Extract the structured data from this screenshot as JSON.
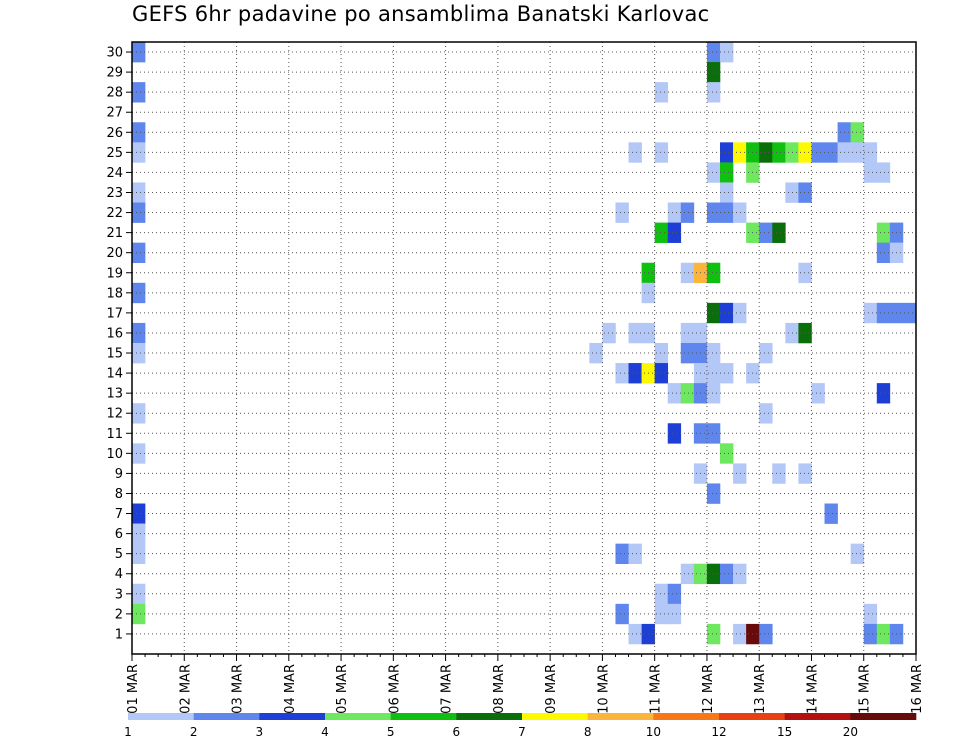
{
  "chart_data": {
    "type": "heatmap",
    "title": "GEFS 6hr padavine po ansamblima Banatski Karlovac",
    "x_ticks": [
      "01 MAR",
      "02 MAR",
      "03 MAR",
      "04 MAR",
      "05 MAR",
      "06 MAR",
      "07 MAR",
      "08 MAR",
      "09 MAR",
      "10 MAR",
      "11 MAR",
      "12 MAR",
      "13 MAR",
      "14 MAR",
      "15 MAR",
      "16 MAR"
    ],
    "y_ticks": [
      "1",
      "2",
      "3",
      "4",
      "5",
      "6",
      "7",
      "8",
      "9",
      "10",
      "11",
      "12",
      "13",
      "14",
      "15",
      "16",
      "17",
      "18",
      "19",
      "20",
      "21",
      "22",
      "23",
      "24",
      "25",
      "26",
      "27",
      "28",
      "29",
      "30"
    ],
    "x_steps_per_day": 4,
    "y_range": [
      0,
      30
    ],
    "grid": true,
    "colorbar": {
      "labels": [
        "1",
        "2",
        "3",
        "4",
        "5",
        "6",
        "7",
        "8",
        "10",
        "12",
        "15",
        "20"
      ],
      "colors": [
        "#b4c8f8",
        "#5f86ec",
        "#1e3fd6",
        "#6ee85e",
        "#10c010",
        "#0a6e0a",
        "#fdfa00",
        "#fcb53c",
        "#f87818",
        "#e84010",
        "#b41010",
        "#680a0a"
      ]
    },
    "cells": [
      {
        "member": 30,
        "step": 0,
        "cls": 1
      },
      {
        "member": 30,
        "step": 44,
        "cls": 1
      },
      {
        "member": 30,
        "step": 45,
        "cls": 0
      },
      {
        "member": 29,
        "step": 44,
        "cls": 5
      },
      {
        "member": 28,
        "step": 0,
        "cls": 1
      },
      {
        "member": 28,
        "step": 40,
        "cls": 0
      },
      {
        "member": 28,
        "step": 44,
        "cls": 0
      },
      {
        "member": 26,
        "step": 0,
        "cls": 1
      },
      {
        "member": 26,
        "step": 54,
        "cls": 1
      },
      {
        "member": 26,
        "step": 55,
        "cls": 3
      },
      {
        "member": 25,
        "step": 0,
        "cls": 0
      },
      {
        "member": 25,
        "step": 38,
        "cls": 0
      },
      {
        "member": 25,
        "step": 40,
        "cls": 0
      },
      {
        "member": 25,
        "step": 45,
        "cls": 2
      },
      {
        "member": 25,
        "step": 46,
        "cls": 6
      },
      {
        "member": 25,
        "step": 47,
        "cls": 4
      },
      {
        "member": 25,
        "step": 48,
        "cls": 5
      },
      {
        "member": 25,
        "step": 49,
        "cls": 4
      },
      {
        "member": 25,
        "step": 50,
        "cls": 3
      },
      {
        "member": 25,
        "step": 51,
        "cls": 6
      },
      {
        "member": 25,
        "step": 52,
        "cls": 1
      },
      {
        "member": 25,
        "step": 53,
        "cls": 1
      },
      {
        "member": 25,
        "step": 54,
        "cls": 0
      },
      {
        "member": 25,
        "step": 55,
        "cls": 0
      },
      {
        "member": 25,
        "step": 56,
        "cls": 0
      },
      {
        "member": 24,
        "step": 44,
        "cls": 0
      },
      {
        "member": 24,
        "step": 45,
        "cls": 4
      },
      {
        "member": 24,
        "step": 47,
        "cls": 3
      },
      {
        "member": 24,
        "step": 56,
        "cls": 0
      },
      {
        "member": 24,
        "step": 57,
        "cls": 0
      },
      {
        "member": 23,
        "step": 0,
        "cls": 0
      },
      {
        "member": 23,
        "step": 45,
        "cls": 0
      },
      {
        "member": 23,
        "step": 50,
        "cls": 0
      },
      {
        "member": 23,
        "step": 51,
        "cls": 1
      },
      {
        "member": 22,
        "step": 0,
        "cls": 1
      },
      {
        "member": 22,
        "step": 37,
        "cls": 0
      },
      {
        "member": 22,
        "step": 41,
        "cls": 0
      },
      {
        "member": 22,
        "step": 42,
        "cls": 1
      },
      {
        "member": 22,
        "step": 44,
        "cls": 1
      },
      {
        "member": 22,
        "step": 45,
        "cls": 1
      },
      {
        "member": 22,
        "step": 46,
        "cls": 0
      },
      {
        "member": 21,
        "step": 40,
        "cls": 4
      },
      {
        "member": 21,
        "step": 41,
        "cls": 2
      },
      {
        "member": 21,
        "step": 47,
        "cls": 3
      },
      {
        "member": 21,
        "step": 48,
        "cls": 1
      },
      {
        "member": 21,
        "step": 49,
        "cls": 5
      },
      {
        "member": 21,
        "step": 57,
        "cls": 3
      },
      {
        "member": 21,
        "step": 58,
        "cls": 1
      },
      {
        "member": 20,
        "step": 0,
        "cls": 1
      },
      {
        "member": 20,
        "step": 57,
        "cls": 1
      },
      {
        "member": 20,
        "step": 58,
        "cls": 0
      },
      {
        "member": 19,
        "step": 39,
        "cls": 4
      },
      {
        "member": 19,
        "step": 42,
        "cls": 0
      },
      {
        "member": 19,
        "step": 43,
        "cls": 7
      },
      {
        "member": 19,
        "step": 44,
        "cls": 4
      },
      {
        "member": 19,
        "step": 51,
        "cls": 0
      },
      {
        "member": 18,
        "step": 0,
        "cls": 1
      },
      {
        "member": 18,
        "step": 39,
        "cls": 0
      },
      {
        "member": 17,
        "step": 44,
        "cls": 5
      },
      {
        "member": 17,
        "step": 45,
        "cls": 2
      },
      {
        "member": 17,
        "step": 46,
        "cls": 0
      },
      {
        "member": 17,
        "step": 56,
        "cls": 0
      },
      {
        "member": 17,
        "step": 57,
        "cls": 1
      },
      {
        "member": 17,
        "step": 58,
        "cls": 1
      },
      {
        "member": 17,
        "step": 59,
        "cls": 1
      },
      {
        "member": 16,
        "step": 0,
        "cls": 1
      },
      {
        "member": 16,
        "step": 36,
        "cls": 0
      },
      {
        "member": 16,
        "step": 38,
        "cls": 0
      },
      {
        "member": 16,
        "step": 39,
        "cls": 0
      },
      {
        "member": 16,
        "step": 42,
        "cls": 0
      },
      {
        "member": 16,
        "step": 43,
        "cls": 0
      },
      {
        "member": 16,
        "step": 50,
        "cls": 0
      },
      {
        "member": 16,
        "step": 51,
        "cls": 5
      },
      {
        "member": 15,
        "step": 0,
        "cls": 0
      },
      {
        "member": 15,
        "step": 35,
        "cls": 0
      },
      {
        "member": 15,
        "step": 40,
        "cls": 0
      },
      {
        "member": 15,
        "step": 42,
        "cls": 1
      },
      {
        "member": 15,
        "step": 43,
        "cls": 1
      },
      {
        "member": 15,
        "step": 44,
        "cls": 0
      },
      {
        "member": 15,
        "step": 48,
        "cls": 0
      },
      {
        "member": 14,
        "step": 37,
        "cls": 0
      },
      {
        "member": 14,
        "step": 38,
        "cls": 2
      },
      {
        "member": 14,
        "step": 39,
        "cls": 6
      },
      {
        "member": 14,
        "step": 40,
        "cls": 2
      },
      {
        "member": 14,
        "step": 43,
        "cls": 0
      },
      {
        "member": 14,
        "step": 44,
        "cls": 0
      },
      {
        "member": 14,
        "step": 45,
        "cls": 0
      },
      {
        "member": 14,
        "step": 47,
        "cls": 0
      },
      {
        "member": 13,
        "step": 41,
        "cls": 0
      },
      {
        "member": 13,
        "step": 42,
        "cls": 3
      },
      {
        "member": 13,
        "step": 43,
        "cls": 1
      },
      {
        "member": 13,
        "step": 44,
        "cls": 0
      },
      {
        "member": 13,
        "step": 52,
        "cls": 0
      },
      {
        "member": 13,
        "step": 57,
        "cls": 2
      },
      {
        "member": 12,
        "step": 0,
        "cls": 0
      },
      {
        "member": 12,
        "step": 48,
        "cls": 0
      },
      {
        "member": 11,
        "step": 41,
        "cls": 2
      },
      {
        "member": 11,
        "step": 43,
        "cls": 1
      },
      {
        "member": 11,
        "step": 44,
        "cls": 1
      },
      {
        "member": 10,
        "step": 0,
        "cls": 0
      },
      {
        "member": 10,
        "step": 45,
        "cls": 3
      },
      {
        "member": 9,
        "step": 43,
        "cls": 0
      },
      {
        "member": 9,
        "step": 46,
        "cls": 0
      },
      {
        "member": 9,
        "step": 49,
        "cls": 0
      },
      {
        "member": 9,
        "step": 51,
        "cls": 0
      },
      {
        "member": 8,
        "step": 44,
        "cls": 1
      },
      {
        "member": 7,
        "step": 0,
        "cls": 2
      },
      {
        "member": 7,
        "step": 53,
        "cls": 1
      },
      {
        "member": 6,
        "step": 0,
        "cls": 0
      },
      {
        "member": 5,
        "step": 0,
        "cls": 0
      },
      {
        "member": 5,
        "step": 37,
        "cls": 1
      },
      {
        "member": 5,
        "step": 38,
        "cls": 0
      },
      {
        "member": 5,
        "step": 55,
        "cls": 0
      },
      {
        "member": 4,
        "step": 42,
        "cls": 0
      },
      {
        "member": 4,
        "step": 43,
        "cls": 3
      },
      {
        "member": 4,
        "step": 44,
        "cls": 5
      },
      {
        "member": 4,
        "step": 45,
        "cls": 1
      },
      {
        "member": 4,
        "step": 46,
        "cls": 0
      },
      {
        "member": 3,
        "step": 0,
        "cls": 0
      },
      {
        "member": 3,
        "step": 40,
        "cls": 0
      },
      {
        "member": 3,
        "step": 41,
        "cls": 1
      },
      {
        "member": 2,
        "step": 0,
        "cls": 3
      },
      {
        "member": 2,
        "step": 37,
        "cls": 1
      },
      {
        "member": 2,
        "step": 40,
        "cls": 0
      },
      {
        "member": 2,
        "step": 41,
        "cls": 0
      },
      {
        "member": 2,
        "step": 56,
        "cls": 0
      },
      {
        "member": 1,
        "step": 38,
        "cls": 0
      },
      {
        "member": 1,
        "step": 39,
        "cls": 2
      },
      {
        "member": 1,
        "step": 44,
        "cls": 3
      },
      {
        "member": 1,
        "step": 46,
        "cls": 0
      },
      {
        "member": 1,
        "step": 47,
        "cls": 11
      },
      {
        "member": 1,
        "step": 48,
        "cls": 1
      },
      {
        "member": 1,
        "step": 56,
        "cls": 1
      },
      {
        "member": 1,
        "step": 57,
        "cls": 3
      },
      {
        "member": 1,
        "step": 58,
        "cls": 1
      }
    ]
  }
}
